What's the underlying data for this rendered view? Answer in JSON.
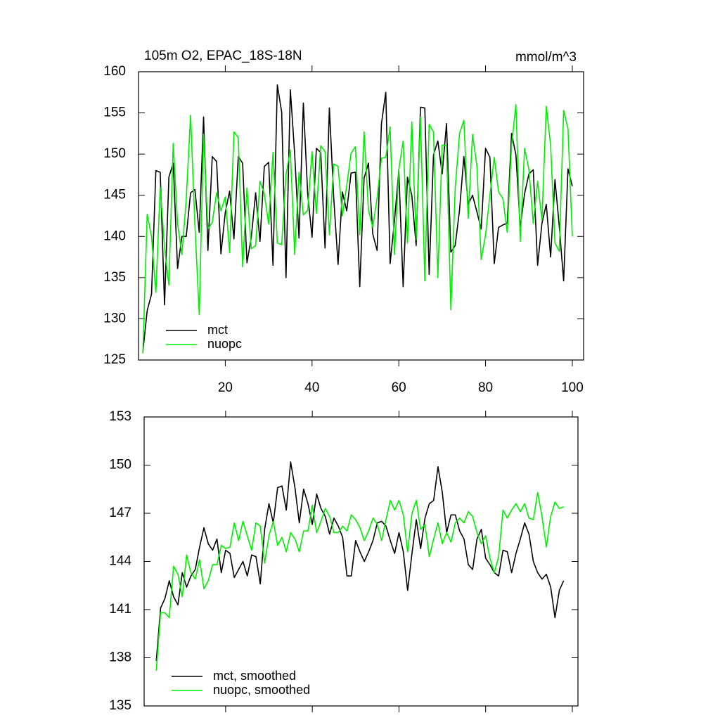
{
  "chart_data": [
    {
      "type": "line",
      "title": "105m O2, EPAC_18S-18N",
      "units": "mmol/m^3",
      "x": [
        1,
        2,
        3,
        4,
        5,
        6,
        7,
        8,
        9,
        10,
        11,
        12,
        13,
        14,
        15,
        16,
        17,
        18,
        19,
        20,
        21,
        22,
        23,
        24,
        25,
        26,
        27,
        28,
        29,
        30,
        31,
        32,
        33,
        34,
        35,
        36,
        37,
        38,
        39,
        40,
        41,
        42,
        43,
        44,
        45,
        46,
        47,
        48,
        49,
        50,
        51,
        52,
        53,
        54,
        55,
        56,
        57,
        58,
        59,
        60,
        61,
        62,
        63,
        64,
        65,
        66,
        67,
        68,
        69,
        70,
        71,
        72,
        73,
        74,
        75,
        76,
        77,
        78,
        79,
        80,
        81,
        82,
        83,
        84,
        85,
        86,
        87,
        88,
        89,
        90,
        91,
        92,
        93,
        94,
        95,
        96,
        97,
        98,
        99,
        100
      ],
      "series": [
        {
          "name": "mct",
          "color": "#000000",
          "values": [
            126,
            131,
            133,
            148,
            147.8,
            131.7,
            147.2,
            148.9,
            136.1,
            140,
            140,
            145.3,
            145.7,
            140.5,
            154.5,
            138.3,
            149.7,
            149.1,
            137.9,
            142.9,
            145.5,
            139.7,
            149.7,
            148.9,
            136.8,
            139.9,
            145.3,
            139.4,
            148.5,
            149,
            136.5,
            158.4,
            155.1,
            135,
            157.8,
            150,
            139.8,
            156.2,
            145.2,
            139.9,
            150.7,
            150.2,
            138.6,
            155.6,
            144.7,
            136.6,
            145.4,
            143.1,
            147.7,
            147.8,
            133.9,
            147.1,
            148.9,
            140.3,
            138.3,
            153.7,
            157.5,
            136.7,
            141.9,
            148,
            133.9,
            147.2,
            145,
            138.9,
            155.7,
            155.6,
            135.4,
            149.9,
            151.6,
            147.6,
            153.7,
            138.1,
            138.9,
            143.2,
            149.7,
            143.9,
            145,
            143,
            140.9,
            150.7,
            149.6,
            136.7,
            141.1,
            141.4,
            141.6,
            152.5,
            149.9,
            141.1,
            145.2,
            147.6,
            148.1,
            136.5,
            141.6,
            143.9,
            137.5,
            146.9,
            141.2,
            134.6,
            148.2,
            146.1
          ]
        },
        {
          "name": "nuopc",
          "color": "#00ee00",
          "values": [
            125.8,
            142.7,
            140,
            133.2,
            146,
            138.6,
            134.1,
            151.3,
            141.6,
            137.8,
            144.5,
            154.7,
            141.4,
            130.5,
            152.4,
            140.9,
            141.7,
            145.3,
            143.1,
            144.8,
            138,
            152.7,
            152,
            136.3,
            145.9,
            138.5,
            138.9,
            146.7,
            145.2,
            141.5,
            150.2,
            139.2,
            139,
            147.5,
            150.5,
            137.8,
            147.8,
            142.6,
            143.2,
            150.3,
            142.8,
            151,
            150.3,
            140.2,
            148.8,
            148.5,
            142.5,
            146.2,
            150.1,
            150.9,
            140.2,
            152.7,
            143.2,
            141.1,
            144.7,
            149.5,
            149.6,
            153.3,
            137.8,
            148.1,
            151.6,
            139.2,
            153.9,
            139.6,
            154.5,
            134.6,
            153.6,
            152.7,
            135,
            151.1,
            151,
            131.1,
            145.8,
            152.5,
            154.1,
            142.2,
            152.4,
            148.6,
            137.2,
            140.2,
            145,
            149.6,
            145.4,
            144.6,
            140.5,
            151.1,
            156,
            139.4,
            150.7,
            148.1,
            141.6,
            146.7,
            142,
            155.8,
            151.1,
            139.2,
            138.2,
            155.3,
            153.1,
            140
          ]
        }
      ],
      "xlim": [
        0,
        102.6
      ],
      "xticks": [
        20,
        40,
        60,
        80,
        100
      ],
      "x_tick_labels": true,
      "ylim": [
        125,
        160
      ],
      "yticks": [
        125,
        130,
        135,
        140,
        145,
        150,
        155,
        160
      ]
    },
    {
      "type": "line",
      "x": [
        4,
        5,
        6,
        7,
        8,
        9,
        10,
        11,
        12,
        13,
        14,
        15,
        16,
        17,
        18,
        19,
        20,
        21,
        22,
        23,
        24,
        25,
        26,
        27,
        28,
        29,
        30,
        31,
        32,
        33,
        34,
        35,
        36,
        37,
        38,
        39,
        40,
        41,
        42,
        43,
        44,
        45,
        46,
        47,
        48,
        49,
        50,
        51,
        52,
        53,
        54,
        55,
        56,
        57,
        58,
        59,
        60,
        61,
        62,
        63,
        64,
        65,
        66,
        67,
        68,
        69,
        70,
        71,
        72,
        73,
        74,
        75,
        76,
        77,
        78,
        79,
        80,
        81,
        82,
        83,
        84,
        85,
        86,
        87,
        88,
        89,
        90,
        91,
        92,
        93,
        94,
        95,
        96,
        97,
        98
      ],
      "series": [
        {
          "name": "mct, smoothed",
          "color": "#000000",
          "values": [
            137.8,
            141.1,
            141.7,
            142.8,
            141.8,
            141.3,
            143.3,
            142.4,
            143.1,
            143.5,
            144.9,
            146.1,
            145.1,
            144.7,
            145.4,
            143.3,
            144.7,
            144.5,
            143,
            143.5,
            144,
            143.1,
            144.4,
            144.3,
            142.6,
            146,
            147.6,
            146.4,
            148.6,
            148.7,
            147.2,
            150.2,
            148.6,
            146.4,
            148.5,
            147.6,
            146.3,
            148.2,
            147.3,
            146.8,
            145.7,
            146.7,
            146.2,
            145.5,
            143.1,
            143.1,
            145.3,
            144.6,
            144,
            144.6,
            145.3,
            146.4,
            146.5,
            146.2,
            145.3,
            144.5,
            145.8,
            144.6,
            142.2,
            144.5,
            146.6,
            144.8,
            146.7,
            147.6,
            147.8,
            149.9,
            148.3,
            145.8,
            146.9,
            146.9,
            145.9,
            145.4,
            143.8,
            143.5,
            145.4,
            146,
            144.2,
            143.8,
            143.3,
            143.1,
            144.7,
            144.6,
            143.3,
            144.5,
            145.4,
            146.4,
            145.7,
            144,
            143.3,
            142.9,
            143.2,
            142.4,
            140.5,
            142.2,
            142.8
          ]
        },
        {
          "name": "nuopc, smoothed",
          "color": "#00ee00",
          "values": [
            137.2,
            140.8,
            140.8,
            140.5,
            143.7,
            143.2,
            141.8,
            144.4,
            143.3,
            142.9,
            144.1,
            142.3,
            142.8,
            143.8,
            143.8,
            145,
            144.8,
            144.9,
            146.4,
            145.3,
            146.5,
            145.6,
            144.7,
            146.4,
            146.2,
            143.9,
            145.6,
            146.5,
            145,
            145.5,
            144.6,
            145.8,
            145.4,
            144.6,
            145.9,
            145.9,
            147.5,
            145.8,
            146.5,
            147.3,
            146.8,
            145.8,
            145.8,
            146.2,
            145.9,
            146.9,
            146.6,
            146.1,
            145.3,
            145.9,
            146.7,
            146.3,
            145.3,
            146.6,
            147.8,
            147.2,
            147.8,
            146.9,
            144.6,
            147,
            147.8,
            146,
            146.3,
            144.3,
            145.4,
            146.4,
            145.1,
            145.8,
            145.2,
            146.4,
            146.7,
            146.4,
            147.1,
            146.8,
            145.8,
            145.1,
            145.6,
            144.2,
            143.3,
            144.3,
            147.2,
            146.7,
            147.2,
            147.6,
            147.1,
            147.6,
            146.7,
            146.6,
            148.3,
            146.8,
            144.9,
            146.8,
            147.7,
            147.3,
            147.4
          ]
        }
      ],
      "xlim": [
        1.2,
        101.3
      ],
      "xticks": [
        20,
        40,
        60,
        80,
        100
      ],
      "x_tick_labels": false,
      "ylim": [
        135,
        153
      ],
      "yticks": [
        135,
        138,
        141,
        144,
        147,
        150,
        153
      ]
    }
  ]
}
